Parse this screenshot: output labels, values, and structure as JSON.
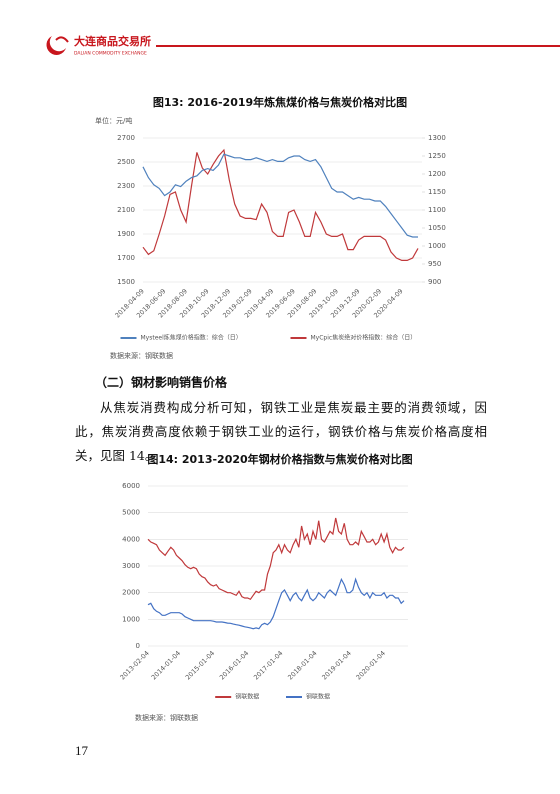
{
  "header": {
    "logo_cn": "大连商品交易所",
    "logo_en": "DALIAN COMMODITY EXCHANGE"
  },
  "figure13": {
    "caption": "图13:  2016-2019年炼焦煤价格与焦炭价格对比图",
    "unit": "单位：元/吨",
    "source": "数据来源：钢联数据"
  },
  "section": {
    "heading": "（二）钢材影响销售价格",
    "paragraph": "从焦炭消费构成分析可知，钢铁工业是焦炭最主要的消费领域，因此，焦炭消费高度依赖于钢铁工业的运行，钢铁价格与焦炭价格高度相关，见图 14。"
  },
  "figure14": {
    "caption": "图14:  2013-2020年钢材价格指数与焦炭价格对比图",
    "source": "数据来源：钢联数据"
  },
  "page_number": "17",
  "chart_data": [
    {
      "type": "line",
      "legend": "bottom",
      "grid": true,
      "categories": [
        "2018-04-09",
        null,
        null,
        null,
        "2018-06-09",
        null,
        null,
        null,
        "2018-08-09",
        null,
        null,
        null,
        "2018-10-09",
        null,
        null,
        null,
        "2018-12-09",
        null,
        null,
        null,
        "2019-02-09",
        null,
        null,
        null,
        "2019-04-09",
        null,
        null,
        null,
        "2019-06-09",
        null,
        null,
        null,
        "2019-08-09",
        null,
        null,
        null,
        "2019-10-09",
        null,
        null,
        null,
        "2019-12-09",
        null,
        null,
        null,
        "2020-02-09",
        null,
        null,
        null,
        "2020-04-09",
        null,
        null,
        null
      ],
      "series": [
        {
          "name": "MyCpic焦炭绝对价格指数：综合（日）",
          "color": "#c0393b",
          "axis": "y",
          "values": [
            1790,
            1730,
            1760,
            1900,
            2050,
            2230,
            2250,
            2100,
            2000,
            2300,
            2580,
            2450,
            2400,
            2480,
            2550,
            2600,
            2350,
            2150,
            2050,
            2030,
            2030,
            2020,
            2150,
            2080,
            1920,
            1880,
            1880,
            2080,
            2100,
            2000,
            1880,
            1880,
            2080,
            2000,
            1900,
            1880,
            1880,
            1900,
            1770,
            1770,
            1850,
            1880,
            1880,
            1880,
            1880,
            1850,
            1750,
            1700,
            1680,
            1680,
            1700,
            1780
          ]
        },
        {
          "name": "Mysteel炼焦煤价格指数：综合（日）",
          "color": "#4f81bd",
          "axis": "y2",
          "values": [
            1220,
            1190,
            1170,
            1160,
            1140,
            1150,
            1170,
            1165,
            1180,
            1190,
            1195,
            1210,
            1215,
            1210,
            1225,
            1255,
            1250,
            1245,
            1245,
            1240,
            1240,
            1245,
            1240,
            1235,
            1240,
            1235,
            1235,
            1245,
            1250,
            1250,
            1240,
            1235,
            1240,
            1220,
            1190,
            1160,
            1150,
            1150,
            1140,
            1130,
            1135,
            1130,
            1130,
            1125,
            1125,
            1110,
            1090,
            1070,
            1050,
            1030,
            1025,
            1025
          ]
        }
      ],
      "ylim": [
        1500,
        2700
      ],
      "yticks": [
        1500,
        1700,
        1900,
        2100,
        2300,
        2500,
        2700
      ],
      "y2lim": [
        900,
        1300
      ],
      "y2ticks": [
        900,
        950,
        1000,
        1050,
        1100,
        1150,
        1200,
        1250,
        1300
      ]
    },
    {
      "type": "line",
      "legend": "bottom",
      "grid": true,
      "categories": [
        "2013-02-04",
        null,
        null,
        null,
        null,
        null,
        null,
        null,
        null,
        null,
        null,
        "2014-01-04",
        null,
        null,
        null,
        null,
        null,
        null,
        null,
        null,
        null,
        null,
        null,
        "2015-01-04",
        null,
        null,
        null,
        null,
        null,
        null,
        null,
        null,
        null,
        null,
        null,
        "2016-01-04",
        null,
        null,
        null,
        null,
        null,
        null,
        null,
        null,
        null,
        null,
        null,
        "2017-01-04",
        null,
        null,
        null,
        null,
        null,
        null,
        null,
        null,
        null,
        null,
        null,
        "2018-01-04",
        null,
        null,
        null,
        null,
        null,
        null,
        null,
        null,
        null,
        null,
        null,
        "2019-01-04",
        null,
        null,
        null,
        null,
        null,
        null,
        null,
        null,
        null,
        null,
        null,
        "2020-01-04",
        null,
        null,
        null,
        null,
        null,
        null,
        null
      ],
      "series": [
        {
          "name": "钢联数据",
          "color": "#4472c4",
          "values": [
            1550,
            1600,
            1400,
            1300,
            1250,
            1150,
            1150,
            1200,
            1250,
            1250,
            1250,
            1250,
            1200,
            1100,
            1050,
            1000,
            950,
            950,
            950,
            950,
            950,
            950,
            950,
            930,
            900,
            900,
            900,
            880,
            860,
            850,
            820,
            800,
            780,
            750,
            720,
            700,
            680,
            650,
            680,
            650,
            800,
            850,
            800,
            900,
            1100,
            1400,
            1700,
            2000,
            2100,
            1900,
            1700,
            1900,
            2000,
            1800,
            1700,
            1900,
            2100,
            1800,
            1700,
            1800,
            2000,
            1900,
            1800,
            2000,
            2100,
            2000,
            1900,
            2200,
            2500,
            2300,
            2000,
            2000,
            2100,
            2500,
            2200,
            2000,
            1900,
            2000,
            1800,
            2000,
            1900,
            1900,
            1900,
            2000,
            1800,
            1900,
            1900,
            1800,
            1800,
            1600,
            1700
          ]
        },
        {
          "name": "钢联数据",
          "color": "#c0393b",
          "values": [
            4000,
            3900,
            3850,
            3800,
            3600,
            3500,
            3400,
            3550,
            3700,
            3600,
            3400,
            3300,
            3200,
            3050,
            2950,
            2900,
            2950,
            2900,
            2700,
            2600,
            2550,
            2400,
            2300,
            2250,
            2300,
            2150,
            2100,
            2050,
            2000,
            2000,
            1950,
            1900,
            2050,
            1850,
            1800,
            1800,
            1750,
            1900,
            2050,
            2000,
            2100,
            2100,
            2700,
            3000,
            3500,
            3600,
            3800,
            3500,
            3800,
            3600,
            3500,
            3800,
            4000,
            3700,
            4500,
            4000,
            4200,
            3800,
            4300,
            4000,
            4700,
            4000,
            3900,
            4100,
            4300,
            4200,
            4800,
            4300,
            4200,
            4600,
            4000,
            3800,
            3800,
            3900,
            3800,
            4300,
            4100,
            3900,
            3900,
            4000,
            3800,
            3900,
            4200,
            3900,
            4200,
            3700,
            3500,
            3700,
            3600,
            3600,
            3700
          ]
        }
      ],
      "ylim": [
        0,
        6000
      ],
      "yticks": [
        0,
        1000,
        2000,
        3000,
        4000,
        5000,
        6000
      ]
    }
  ]
}
